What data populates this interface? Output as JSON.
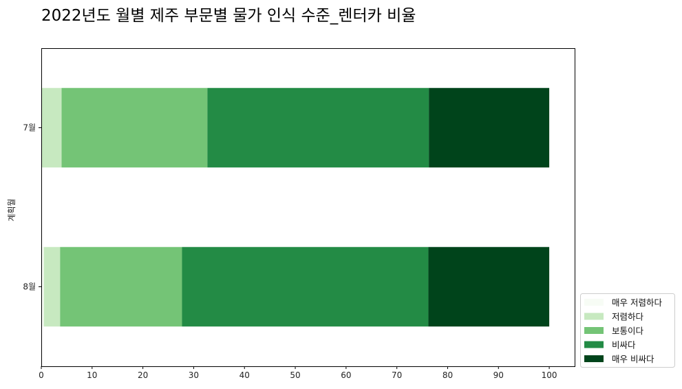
{
  "chart_data": {
    "type": "bar",
    "orientation": "horizontal",
    "stacked": true,
    "title": "2022년도 월별 제주 부문별 물가 인식 수준_렌터카 비율",
    "xlabel": "",
    "ylabel": "계획월",
    "categories": [
      "7월",
      "8월"
    ],
    "xlim": [
      0,
      105
    ],
    "xticks": [
      0,
      10,
      20,
      30,
      40,
      50,
      60,
      70,
      80,
      90,
      100
    ],
    "grid": false,
    "legend_position": "lower-right-outside",
    "series": [
      {
        "name": "매우 저렴하다",
        "color": "#f7fcf5",
        "values": [
          0.0,
          0.5
        ]
      },
      {
        "name": "저렴하다",
        "color": "#c7e9c0",
        "values": [
          4.0,
          3.2
        ]
      },
      {
        "name": "보통이다",
        "color": "#74c476",
        "values": [
          28.7,
          24.0
        ]
      },
      {
        "name": "비싸다",
        "color": "#238b45",
        "values": [
          43.6,
          48.5
        ]
      },
      {
        "name": "매우 비싸다",
        "color": "#00441b",
        "values": [
          23.7,
          23.8
        ]
      }
    ]
  }
}
